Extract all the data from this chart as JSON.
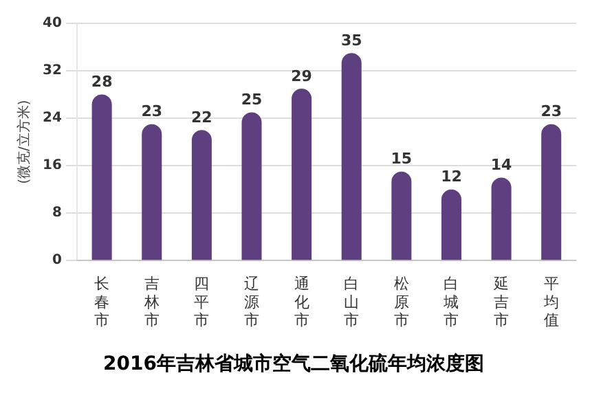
{
  "chart_data": {
    "type": "bar",
    "title": "2016年吉林省城市空气二氧化硫年均浓度图",
    "ylabel": "(微克/立方米)",
    "categories": [
      "长春市",
      "吉林市",
      "四平市",
      "辽源市",
      "通化市",
      "白山市",
      "松原市",
      "白城市",
      "延吉市",
      "平均值"
    ],
    "values": [
      28,
      23,
      22,
      25,
      29,
      35,
      15,
      12,
      14,
      23
    ],
    "color": "#5e3f80",
    "ylim": [
      0,
      40
    ],
    "yticks": [
      0,
      8,
      16,
      24,
      32,
      40
    ],
    "grid": "y",
    "data_labels": true
  }
}
